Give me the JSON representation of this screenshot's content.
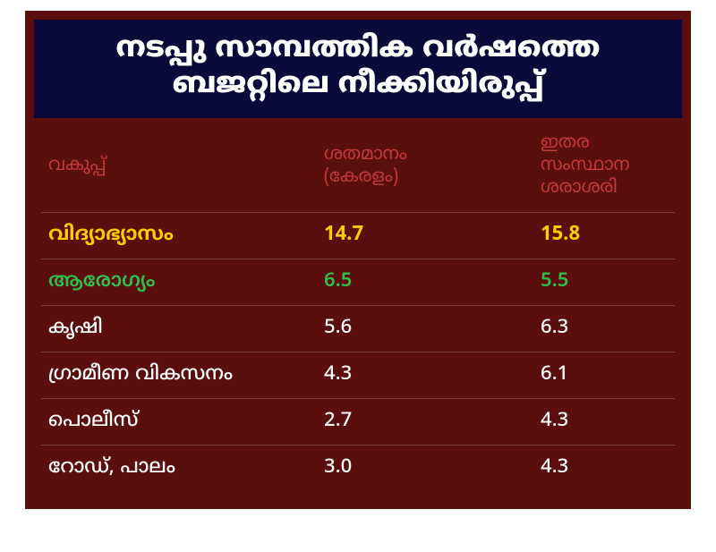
{
  "colors": {
    "frame_bg": "#5a0e0e",
    "header_bg": "#0a0a3a",
    "header_text": "#ffffff",
    "column_header_text": "#c23a3a",
    "row_divider": "rgba(255,255,255,0.2)",
    "yellow": "#ffcc00",
    "green": "#2fbf4a",
    "white": "#ffffff",
    "page_bg": "#ffffff"
  },
  "typography": {
    "header_fontsize": 32,
    "header_weight": 900,
    "row_fontsize": 22,
    "columnhead_fontsize": 20
  },
  "header": {
    "line1": "നടപ്പു സാമ്പത്തിക  വർഷത്തെ",
    "line2": "ബജറ്റിലെ നീക്കിയിരുപ്പ്"
  },
  "table": {
    "type": "table",
    "columns": {
      "dept": "വകുപ്പ്",
      "kerala": "ശതമാനം (കേരളം)",
      "other": "ഇതര സംസ്ഥാന ശരാശരി"
    },
    "rows": [
      {
        "dept": "വിദ്യാഭ്യാസം",
        "kerala": "14.7",
        "other": "15.8",
        "color": "yellow"
      },
      {
        "dept": "ആരോഗ്യം",
        "kerala": "6.5",
        "other": "5.5",
        "color": "green"
      },
      {
        "dept": "കൃഷി",
        "kerala": "5.6",
        "other": "6.3",
        "color": "white"
      },
      {
        "dept": "ഗ്രാമീണ വികസനം",
        "kerala": "4.3",
        "other": "6.1",
        "color": "white"
      },
      {
        "dept": "പൊലീസ്",
        "kerala": "2.7",
        "other": "4.3",
        "color": "white"
      },
      {
        "dept": "റോഡ്, പാലം",
        "kerala": "3.0",
        "other": "4.3",
        "color": "white"
      }
    ]
  }
}
